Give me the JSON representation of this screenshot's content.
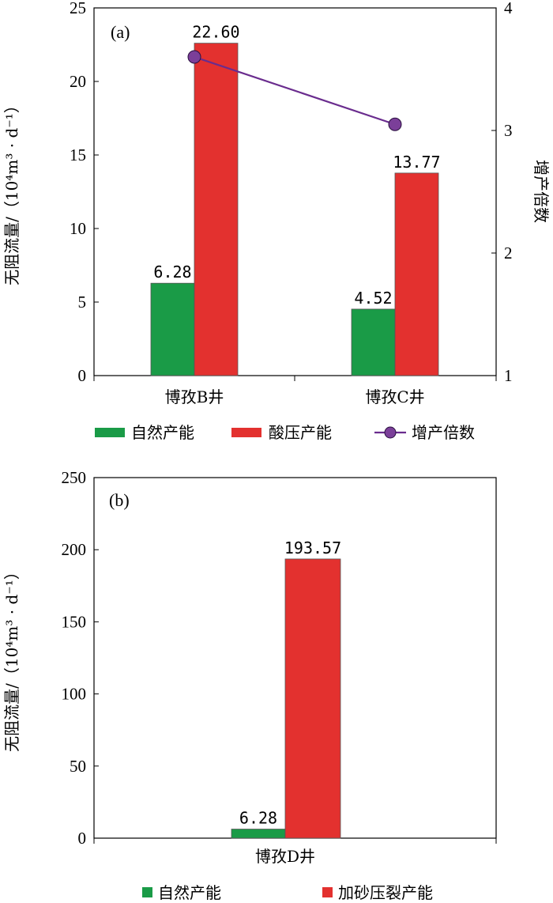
{
  "colors": {
    "natural": "#1a9b47",
    "acid": "#e3312f",
    "line": "#6a2c8e",
    "marker": "#7b3f99",
    "axis": "#000000"
  },
  "chart_data": [
    {
      "type": "bar",
      "panel_label": "(a)",
      "categories": [
        "博孜B井",
        "博孜C井"
      ],
      "series": [
        {
          "name": "自然产能",
          "values": [
            6.28,
            4.52
          ],
          "color": "#1a9b47",
          "value_labels": [
            "6.28",
            "4.52"
          ]
        },
        {
          "name": "酸压产能",
          "values": [
            22.6,
            13.77
          ],
          "color": "#e3312f",
          "value_labels": [
            "22.60",
            "13.77"
          ]
        }
      ],
      "line_series": {
        "name": "增产倍数",
        "values": [
          3.6,
          3.05
        ],
        "axis": "right"
      },
      "ylabel": "无阻流量/（10⁴m³ · d⁻¹）",
      "y2label": "增产倍数",
      "ylim": [
        0,
        25
      ],
      "y2lim": [
        1,
        4
      ],
      "yticks": [
        "0",
        "5",
        "10",
        "15",
        "20",
        "25"
      ],
      "y2ticks": [
        "1",
        "2",
        "3",
        "4"
      ],
      "legend_position": "bottom",
      "grid": false
    },
    {
      "type": "bar",
      "panel_label": "(b)",
      "categories": [
        "博孜D井"
      ],
      "series": [
        {
          "name": "自然产能",
          "values": [
            6.28
          ],
          "color": "#1a9b47",
          "value_labels": [
            "6.28"
          ]
        },
        {
          "name": "加砂压裂产能",
          "values": [
            193.57
          ],
          "color": "#e3312f",
          "value_labels": [
            "193.57"
          ]
        }
      ],
      "ylabel": "无阻流量/（10⁴m³ · d⁻¹）",
      "ylim": [
        0,
        250
      ],
      "yticks": [
        "0",
        "50",
        "100",
        "150",
        "200",
        "250"
      ],
      "legend_position": "bottom",
      "grid": false
    }
  ]
}
